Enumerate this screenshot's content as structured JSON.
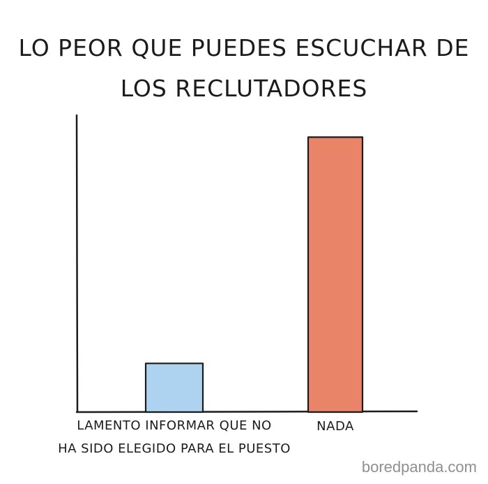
{
  "chart_data": {
    "type": "bar",
    "title": [
      "LO PEOR QUE PUEDES ESCUCHAR DE",
      "LOS RECLUTADORES"
    ],
    "categories": [
      [
        "LAMENTO INFORMAR QUE NO",
        "HA SIDO ELEGIDO PARA EL PUESTO"
      ],
      [
        "NADA"
      ]
    ],
    "values": [
      17,
      96
    ],
    "ylim": [
      0,
      100
    ],
    "bar_colors": [
      "#aed3f0",
      "#ea8469"
    ],
    "bar_outline": "#1b1b1b",
    "grid": false,
    "y_ticks_shown": false,
    "xlabel": "",
    "ylabel": ""
  },
  "watermark": "boredpanda.com"
}
